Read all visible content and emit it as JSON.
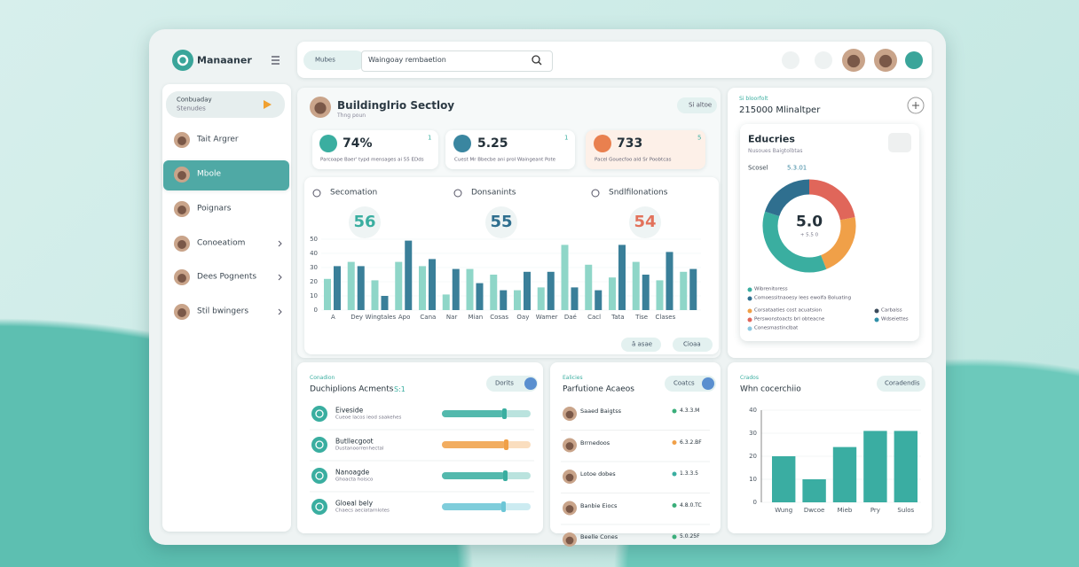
{
  "sidebar": {
    "logo": "Manaaner",
    "promo": {
      "title": "Conbuaday",
      "subtitle": "Stenudes"
    },
    "items": [
      "Tait Argrer",
      "Mbole",
      "Poignars",
      "Conoeatiom",
      "Dees Pognents",
      "Stil bwingers"
    ]
  },
  "topbar": {
    "button": "Mubes",
    "search": "Waingoay rembaetion"
  },
  "overview": {
    "title": "Buildinglrio Sectloy",
    "subtitle": "Thng poun",
    "button": "Si altoe",
    "stats": [
      {
        "value": "74%",
        "note": "Parcoape Baer' typd mensages ai 55 EDds",
        "corner": "1"
      },
      {
        "value": "5.25",
        "note": "Cuest Mr Bbecbe ani prol Waingeant Pote",
        "corner": "1"
      },
      {
        "value": "733",
        "note": "Pacel Gouecfoo ald Sr Poobtcas",
        "corner": "5"
      }
    ],
    "gauges": [
      {
        "label": "Secomation",
        "value": "56",
        "color": "#3aaea0"
      },
      {
        "label": "Donsanints",
        "value": "55",
        "color": "#2f6f8f"
      },
      {
        "label": "Sndlfilonations",
        "value": "54",
        "color": "#e2725b"
      }
    ],
    "chart": {
      "type": "bar",
      "categories": [
        "A",
        "Dey",
        "Wingtales",
        "Apo",
        "Cana",
        "Nar",
        "Mian",
        "Cosas",
        "Oay",
        "Wamer",
        "Daé",
        "Cacl",
        "Tata",
        "Tise",
        "Clases",
        null
      ],
      "series": [
        {
          "color": "#8fd6c8",
          "values": [
            22,
            34,
            21,
            34,
            31,
            11,
            29,
            25,
            14,
            16,
            46,
            32,
            23,
            34,
            21,
            27
          ]
        },
        {
          "color": "#3a7f99",
          "values": [
            31,
            31,
            10,
            49,
            36,
            29,
            19,
            14,
            27,
            27,
            16,
            14,
            46,
            25,
            41,
            29
          ]
        }
      ],
      "ylim": [
        0,
        50
      ],
      "yticks": [
        0,
        10,
        20,
        30,
        40,
        50
      ]
    },
    "buttons": [
      "ä asae",
      "Cioaa"
    ]
  },
  "summary": {
    "label": "Si bloorfolt",
    "title": "215000 Mlinaltper",
    "card": {
      "title": "Educries",
      "subtitle": "Nusoues Baigtolbtas",
      "key": "Scosel",
      "key_value": "5.3.01",
      "donut": {
        "type": "pie",
        "center": "5.0",
        "center_note": "+ 5.5 0",
        "segments": [
          {
            "name": "Perswonstoacts brl obteacne",
            "color": "#e0665a",
            "value": 22
          },
          {
            "name": "Corsataaties cost acuatsion",
            "color": "#f0a048",
            "value": 22
          },
          {
            "name": "Wibrenitoress",
            "color": "#3aaea0",
            "value": 36
          },
          {
            "name": "Comoessitnaoesy lees ewolfa Boluating",
            "color": "#2f6f8f",
            "value": 20
          }
        ]
      },
      "legend_extra": [
        {
          "name": "Carbalss",
          "color": "#3a4a5a"
        },
        {
          "name": "Wdseiettes",
          "color": "#2f8fa8"
        },
        {
          "name": "Conesmastinclbat",
          "color": "#8cc8e0"
        }
      ]
    }
  },
  "actions": {
    "label": "Conadion",
    "title": "Duchiplions Acments",
    "badge": "S:1",
    "button": "Dorits",
    "rows": [
      {
        "title": "Eiveside",
        "subtitle": "Cueoe lacos ieod saakehes",
        "color": "#3aaea0",
        "value": 70
      },
      {
        "title": "Butllecgoot",
        "subtitle": "Dustanoorrenhectal",
        "color": "#f0a048",
        "value": 72
      },
      {
        "title": "Nanoagde",
        "subtitle": "Ghoacta hoisco",
        "color": "#3aaea0",
        "value": 71
      },
      {
        "title": "Gloeal bely",
        "subtitle": "Chaecs aeciatarnlotes",
        "color": "#6cc6d6",
        "value": 69
      }
    ]
  },
  "performance": {
    "label": "Ealicies",
    "title": "Parfutione Acaeos",
    "button": "Coatcs",
    "rows": [
      {
        "name": "Saaed Baigtss",
        "value": "4.3.3.M",
        "color": "#3aae7a"
      },
      {
        "name": "Brrnedoos",
        "value": "6.3.2.BF",
        "color": "#f0a048"
      },
      {
        "name": "Lotoe dobes",
        "value": "1.3.3.5",
        "color": "#3aaea0"
      },
      {
        "name": "Banbie Eiocs",
        "value": "4.8.0.TC",
        "color": "#3aae7a"
      },
      {
        "name": "Beelle Cones",
        "value": "5.0.25F",
        "color": "#3aae7a"
      }
    ]
  },
  "trend": {
    "label": "Crados",
    "title": "Whn cocerchiio",
    "button": "Coradendis",
    "chart": {
      "type": "bar",
      "categories": [
        "Wung",
        "Dwcoe",
        "Mieb",
        "Pry",
        "Sulos"
      ],
      "values": [
        20,
        10,
        24,
        31,
        31
      ],
      "color": "#3aada2",
      "ylim": [
        0,
        40
      ],
      "yticks": [
        0,
        10,
        20,
        30,
        40
      ]
    }
  }
}
